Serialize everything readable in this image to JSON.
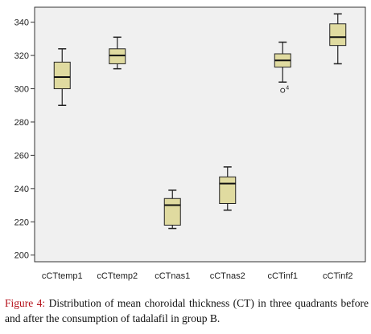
{
  "chart_data": {
    "type": "box",
    "categories": [
      "cCTtemp1",
      "cCTtemp2",
      "cCTnas1",
      "cCTnas2",
      "cCTinf1",
      "cCTinf2"
    ],
    "boxes": [
      {
        "min": 290,
        "q1": 300,
        "median": 307,
        "q3": 316,
        "max": 324,
        "outliers": []
      },
      {
        "min": 312,
        "q1": 315,
        "median": 320,
        "q3": 324,
        "max": 331,
        "outliers": []
      },
      {
        "min": 216,
        "q1": 218,
        "median": 230,
        "q3": 234,
        "max": 239,
        "outliers": []
      },
      {
        "min": 227,
        "q1": 231,
        "median": 243,
        "q3": 247,
        "max": 253,
        "outliers": []
      },
      {
        "min": 304,
        "q1": 313,
        "median": 317,
        "q3": 321,
        "max": 328,
        "outliers": [
          {
            "value": 299,
            "label": "4"
          }
        ]
      },
      {
        "min": 315,
        "q1": 326,
        "median": 331,
        "q3": 339,
        "max": 345,
        "outliers": []
      }
    ],
    "y_ticks": [
      200,
      220,
      240,
      260,
      280,
      300,
      320,
      340
    ],
    "ylim": [
      196,
      349
    ],
    "box_fill": "#e0dba0",
    "plot_background": "#f0f0f0",
    "grid": false
  },
  "caption": {
    "label": "Figure 4:",
    "text": " Distribution of mean choroidal thickness (CT) in three quadrants before and after the consumption of tadalafil in group B."
  }
}
